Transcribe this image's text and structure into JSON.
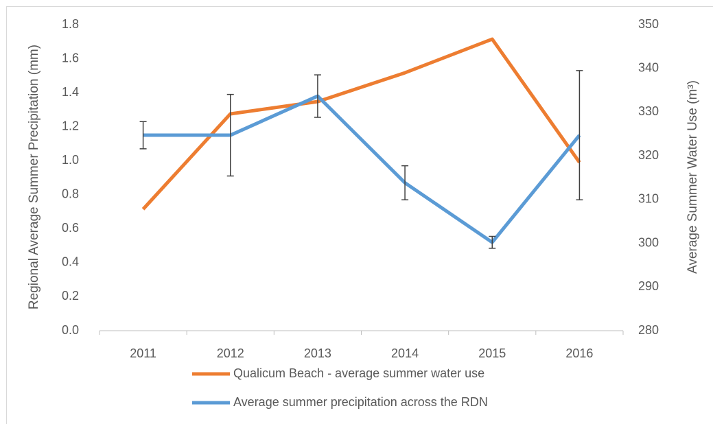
{
  "chart_data": {
    "type": "line",
    "y_label": "Regional Average Summer Precipitation (mm)",
    "y2_label": "Average Summer Water Use (m³)",
    "categories": [
      "2011",
      "2012",
      "2013",
      "2014",
      "2015",
      "2016"
    ],
    "series": [
      {
        "name": "Qualicum Beach  - average summer water use",
        "color": "#ed7d31",
        "axis": "y2",
        "values": [
          307.8,
          329.6,
          332.4,
          339.0,
          346.7,
          318.5
        ]
      },
      {
        "name": "Average summer precipitation across the RDN",
        "color": "#5b9bd5",
        "values": [
          1.15,
          1.15,
          1.38,
          0.87,
          0.52,
          1.15
        ],
        "errors": [
          0.08,
          0.24,
          0.125,
          0.1,
          0.035,
          0.38
        ]
      }
    ],
    "ylim": [
      0,
      1.8
    ],
    "yticks": [
      {
        "value": 0,
        "label": "0.0"
      },
      0.2,
      0.4,
      0.6,
      0.8,
      {
        "value": 1,
        "label": "1.0"
      },
      1.2,
      1.4,
      1.6,
      1.8
    ],
    "y2lim": [
      280,
      350
    ],
    "y2ticks": [
      280,
      290,
      300,
      310,
      320,
      330,
      340,
      350
    ],
    "grid": false,
    "legend": "bottom"
  }
}
